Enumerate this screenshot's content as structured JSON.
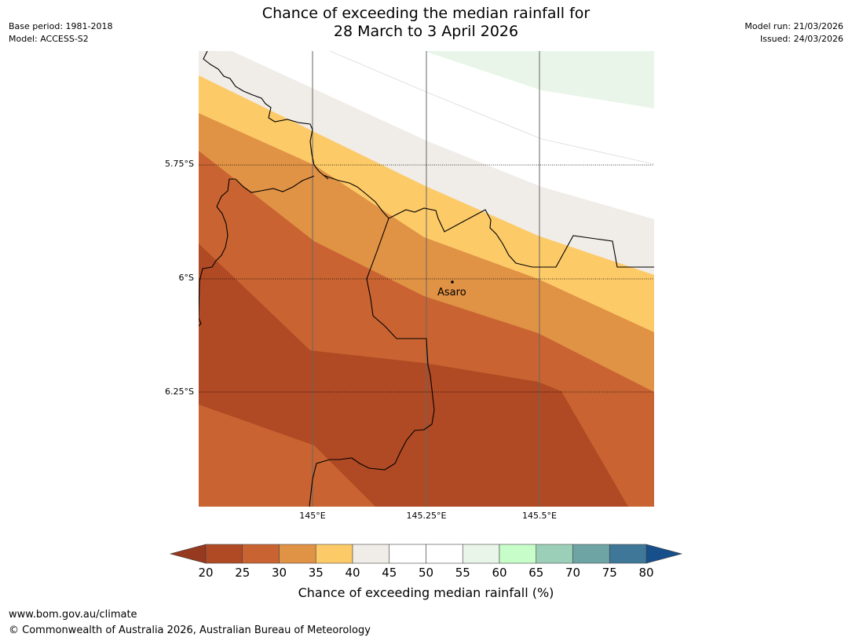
{
  "title": {
    "line1": "Chance of exceeding the median rainfall for",
    "line2": "28 March to 3 April 2026"
  },
  "meta": {
    "base_period": "Base period: 1981-2018",
    "model": "Model: ACCESS-S2",
    "model_run": "Model run: 21/03/2026",
    "issued": "Issued: 24/03/2026"
  },
  "map": {
    "lat_labels": [
      "5.75°S",
      "6°S",
      "6.25°S"
    ],
    "lon_labels": [
      "145°E",
      "145.25°E",
      "145.5°E"
    ],
    "place": {
      "name": "Asaro"
    }
  },
  "colorbar": {
    "ticks": [
      "20",
      "25",
      "30",
      "35",
      "40",
      "45",
      "50",
      "55",
      "60",
      "65",
      "70",
      "75",
      "80"
    ],
    "colors": [
      "#b04a24",
      "#c96432",
      "#e09245",
      "#fdca68",
      "#f0ece7",
      "#ffffff",
      "#ffffff",
      "#e9f5e9",
      "#c6fdc8",
      "#9ccfb8",
      "#6fa4a4",
      "#3e7797"
    ],
    "under_color": "#97391f",
    "over_color": "#164f8a",
    "label": "Chance of exceeding median rainfall (%)"
  },
  "footer": {
    "url": "www.bom.gov.au/climate",
    "copyright": "© Commonwealth of Australia 2026, Australian Bureau of Meteorology"
  }
}
